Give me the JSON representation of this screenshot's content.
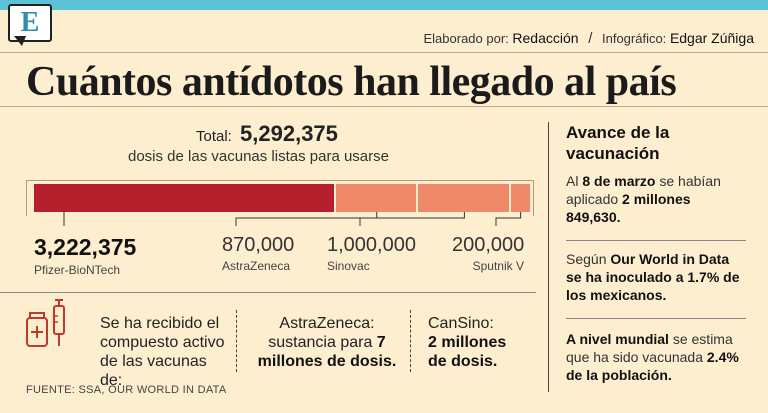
{
  "header": {
    "logo_letter": "E",
    "credits": {
      "elaborado_label": "Elaborado por:",
      "elaborado_value": "Redacción",
      "separator": "/",
      "infografico_label": "Infográfico:",
      "infografico_value": "Edgar Zúñiga"
    }
  },
  "title": "Cuántos antídotos han llegado al país",
  "total": {
    "label": "Total:",
    "value": "5,292,375",
    "subtitle": "dosis de las vacunas listas para usarse"
  },
  "chart_data": {
    "type": "bar",
    "stacked": true,
    "title": "Cuántos antídotos han llegado al país",
    "categories": [
      "Pfizer-BioNTech",
      "AstraZeneca",
      "Sinovac",
      "Sputnik V"
    ],
    "values": [
      3222375,
      870000,
      1000000,
      200000
    ],
    "value_labels": [
      "3,222,375",
      "870,000",
      "1,000,000",
      "200,000"
    ],
    "colors": [
      "#b5202c",
      "#ee8a6a",
      "#ee8a6a",
      "#ee8a6a"
    ],
    "total": 5292375
  },
  "sidebar": {
    "title": "Avance de la vacunación",
    "p1": {
      "t1": "Al ",
      "b1": "8 de marzo",
      "t2": " se habían aplicado ",
      "b2": "2 millones 849,630."
    },
    "p2": {
      "t1": "Según ",
      "b1": "Our World in Data se ha inoculado a 1.7% de los mexicanos."
    },
    "p3": {
      "b1": "A nivel mundial",
      "t1": " se estima que ha sido vacunada ",
      "b2": "2.4% de la población."
    }
  },
  "bottom": {
    "intro": "Se ha recibido el compuesto activo de las vacunas de:",
    "astra": {
      "t1": "AstraZeneca: sustancia para ",
      "b1": "7 millones de dosis."
    },
    "cansino": {
      "t1": "CanSino:",
      "b1": "2 millones de dosis."
    }
  },
  "source": "FUENTE: SSA, OUR WORLD IN DATA"
}
